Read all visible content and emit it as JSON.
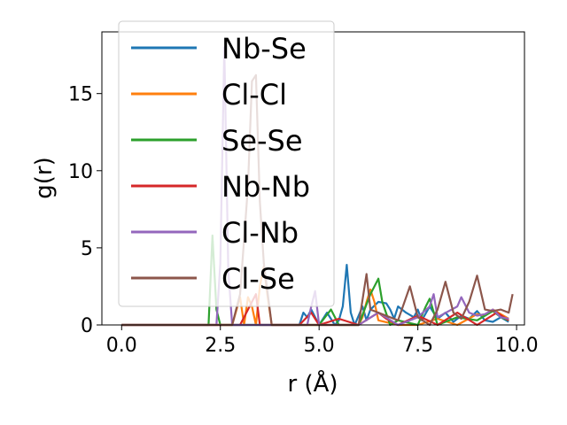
{
  "chart_data": {
    "type": "line",
    "title": "",
    "xlabel": "r (Å)",
    "ylabel": "g(r)",
    "xlim": [
      -0.5,
      10.2
    ],
    "ylim": [
      0,
      19
    ],
    "xticks": [
      0.0,
      2.5,
      5.0,
      7.5,
      10.0
    ],
    "xtick_labels": [
      "0.0",
      "2.5",
      "5.0",
      "7.5",
      "10.0"
    ],
    "yticks": [
      0,
      5,
      10,
      15
    ],
    "ytick_labels": [
      "0",
      "5",
      "10",
      "15"
    ],
    "grid": false,
    "legend_position": "upper-left",
    "series": [
      {
        "name": "Nb-Se",
        "color": "#1f77b4",
        "x": [
          0,
          1,
          2,
          2.5,
          2.6,
          2.7,
          2.8,
          3.0,
          4.5,
          4.6,
          4.7,
          4.8,
          5.0,
          5.2,
          5.4,
          5.5,
          5.6,
          5.7,
          5.8,
          5.9,
          6.0,
          6.1,
          6.2,
          6.3,
          6.5,
          6.7,
          6.8,
          6.9,
          7.0,
          7.2,
          7.4,
          7.5,
          7.6,
          7.8,
          8.0,
          8.2,
          8.4,
          8.6,
          8.8,
          9.0,
          9.2,
          9.4,
          9.6,
          9.8
        ],
        "y": [
          0,
          0,
          0,
          0,
          0,
          0,
          0,
          0,
          0,
          0.8,
          0.5,
          1.0,
          0,
          0.8,
          0,
          0.3,
          1.2,
          3.9,
          0.8,
          0,
          0.6,
          1.2,
          0.3,
          1.0,
          1.5,
          1.4,
          1.0,
          0.4,
          1.2,
          0.8,
          0.5,
          1.0,
          0.3,
          1.2,
          0.4,
          0.8,
          0.2,
          0.6,
          0.4,
          0.9,
          0.3,
          0.2,
          0.5,
          0.2
        ]
      },
      {
        "name": "Cl-Cl",
        "color": "#ff7f0e",
        "x": [
          0,
          1,
          2,
          2.8,
          3.0,
          3.1,
          3.2,
          3.3,
          3.4,
          3.5,
          3.6,
          3.7,
          3.8,
          4.0,
          5.0,
          5.5,
          6.0,
          6.1,
          6.2,
          6.3,
          6.4,
          6.5,
          7.0,
          7.5,
          8.0,
          8.5,
          9.0,
          9.2,
          9.4,
          9.6,
          9.8
        ],
        "y": [
          0,
          0,
          0,
          0,
          1.8,
          0,
          1.8,
          1.2,
          0,
          2.5,
          3.8,
          1.8,
          0,
          0,
          0,
          0,
          0,
          0.5,
          1.5,
          2.3,
          1.5,
          0.3,
          0,
          0,
          0.4,
          0,
          0.7,
          0.6,
          1.0,
          0.7,
          0.4
        ]
      },
      {
        "name": "Se-Se",
        "color": "#2ca02c",
        "x": [
          0,
          1,
          2,
          2.2,
          2.3,
          2.4,
          2.5,
          3.0,
          3.5,
          4.0,
          4.5,
          5.0,
          5.3,
          5.5,
          6.0,
          6.3,
          6.5,
          6.6,
          6.8,
          7.0,
          7.5,
          7.7,
          7.8,
          8.0,
          8.5,
          9.0,
          9.2,
          9.4,
          9.6,
          9.8
        ],
        "y": [
          0,
          0,
          0,
          0,
          5.8,
          1.0,
          0,
          0,
          0,
          0,
          0,
          0,
          1.0,
          0,
          0,
          2.0,
          3.0,
          1.5,
          0,
          0.3,
          0,
          1.2,
          1.7,
          0,
          0.5,
          0.3,
          0.6,
          0.9,
          0.5,
          0.3
        ]
      },
      {
        "name": "Nb-Nb",
        "color": "#d62728",
        "x": [
          0,
          1,
          2,
          3,
          3.3,
          3.4,
          3.5,
          4.0,
          4.5,
          4.8,
          5.0,
          5.5,
          6.0,
          6.5,
          6.7,
          7.0,
          7.5,
          8.0,
          8.5,
          9.0,
          9.5,
          9.8
        ],
        "y": [
          0,
          0,
          0,
          0,
          1.5,
          2.0,
          0,
          0,
          0,
          0.8,
          0,
          0.4,
          0,
          0.8,
          0.4,
          0,
          0.6,
          0,
          0.8,
          0,
          0.8,
          0.3
        ]
      },
      {
        "name": "Cl-Nb",
        "color": "#9467bd",
        "x": [
          0,
          1,
          2,
          2.4,
          2.5,
          2.6,
          2.7,
          2.8,
          3.0,
          3.5,
          4.0,
          4.5,
          4.7,
          4.8,
          4.9,
          5.0,
          5.5,
          6.0,
          6.5,
          7.0,
          7.5,
          7.8,
          7.9,
          8.0,
          8.5,
          8.6,
          8.8,
          9.0,
          9.2,
          9.4,
          9.6,
          9.8
        ],
        "y": [
          0,
          0,
          0,
          0,
          4.0,
          18.0,
          3.5,
          0,
          0,
          0,
          0,
          0,
          0,
          1.2,
          2.2,
          0,
          0,
          0,
          0.8,
          0,
          0.5,
          1.2,
          2.0,
          0.5,
          1.2,
          1.8,
          0.8,
          0.6,
          0.7,
          1.0,
          0.5,
          0.4
        ]
      },
      {
        "name": "Cl-Se",
        "color": "#8c564b",
        "x": [
          0,
          1,
          2,
          2.8,
          3.0,
          3.2,
          3.3,
          3.4,
          3.5,
          3.6,
          3.8,
          4.0,
          4.5,
          5.0,
          5.5,
          6.0,
          6.2,
          6.3,
          6.5,
          7.0,
          7.3,
          7.5,
          7.8,
          8.0,
          8.2,
          8.4,
          8.6,
          8.8,
          9.0,
          9.2,
          9.4,
          9.6,
          9.8,
          9.9
        ],
        "y": [
          0,
          0,
          0,
          0,
          2.0,
          9.0,
          15.8,
          16.2,
          8.0,
          4.0,
          0,
          0,
          0,
          0,
          0,
          0,
          3.3,
          1.0,
          0.8,
          0.3,
          2.5,
          0.5,
          0,
          1.0,
          2.8,
          0.8,
          0.4,
          1.5,
          3.2,
          1.0,
          0.9,
          1.0,
          0.8,
          2.0
        ]
      }
    ]
  }
}
